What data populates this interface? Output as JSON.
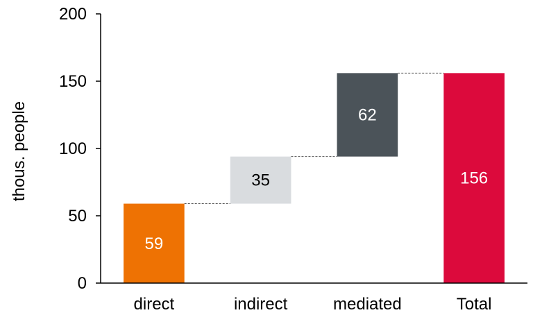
{
  "chart_data": {
    "type": "bar",
    "subtype": "waterfall",
    "title": "",
    "xlabel": "",
    "ylabel": "thous. people",
    "ylim": [
      0,
      200
    ],
    "yticks": [
      0,
      50,
      100,
      150,
      200
    ],
    "grid": false,
    "legend": "none",
    "categories": [
      "direct",
      "indirect",
      "mediated",
      "Total"
    ],
    "values": [
      59,
      35,
      62,
      156
    ],
    "bases": [
      0,
      59,
      94,
      0
    ],
    "labels": [
      "59",
      "35",
      "62",
      "156"
    ],
    "colors": [
      "#ee7203",
      "#d9dcdf",
      "#4b5359",
      "#dc0a3c"
    ],
    "label_colors": [
      "#ffffff",
      "#000000",
      "#ffffff",
      "#ffffff"
    ]
  }
}
